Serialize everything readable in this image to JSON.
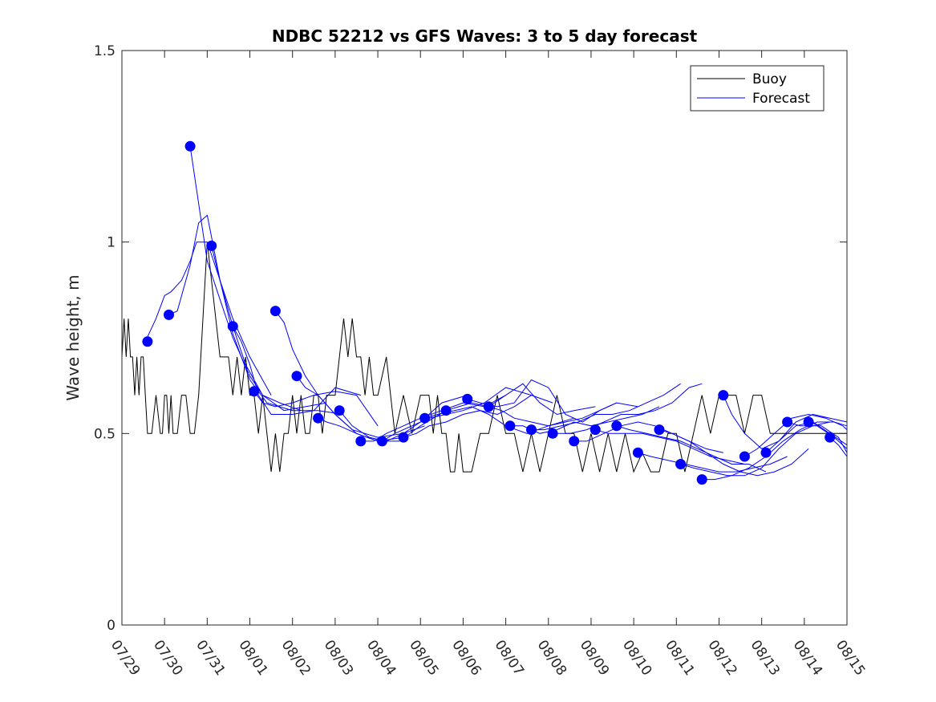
{
  "chart_data": {
    "type": "line",
    "title": "NDBC 52212 vs GFS Waves: 3 to 5 day forecast",
    "xlabel": "",
    "ylabel": "Wave height, m",
    "xlim": [
      0,
      17
    ],
    "ylim": [
      0,
      1.5
    ],
    "x_tick_labels": [
      "07/29",
      "07/30",
      "07/31",
      "08/01",
      "08/02",
      "08/03",
      "08/04",
      "08/05",
      "08/06",
      "08/07",
      "08/08",
      "08/09",
      "08/10",
      "08/11",
      "08/12",
      "08/13",
      "08/14",
      "08/15"
    ],
    "y_ticks": [
      0,
      0.5,
      1,
      1.5
    ],
    "y_tick_labels": [
      "0",
      "0.5",
      "1",
      "1.5"
    ],
    "legend": {
      "location": "top-right",
      "entries": [
        "Buoy",
        "Forecast"
      ]
    },
    "colors": {
      "buoy": "#000000",
      "forecast": "#0000ff",
      "axes": "#262626"
    },
    "buoy": {
      "name": "Buoy",
      "x": [
        0,
        0.05,
        0.1,
        0.15,
        0.2,
        0.25,
        0.3,
        0.35,
        0.4,
        0.45,
        0.5,
        0.55,
        0.6,
        0.7,
        0.8,
        0.9,
        0.95,
        1.0,
        1.05,
        1.1,
        1.15,
        1.2,
        1.3,
        1.4,
        1.5,
        1.6,
        1.7,
        1.8,
        1.9,
        2.0,
        2.1,
        2.2,
        2.3,
        2.4,
        2.5,
        2.6,
        2.7,
        2.8,
        2.9,
        3.0,
        3.1,
        3.2,
        3.3,
        3.4,
        3.5,
        3.6,
        3.7,
        3.8,
        3.9,
        4.0,
        4.1,
        4.2,
        4.3,
        4.4,
        4.5,
        4.6,
        4.7,
        4.8,
        4.9,
        5.0,
        5.1,
        5.2,
        5.3,
        5.4,
        5.5,
        5.6,
        5.7,
        5.8,
        5.9,
        6.0,
        6.2,
        6.4,
        6.6,
        6.8,
        7.0,
        7.2,
        7.3,
        7.4,
        7.5,
        7.6,
        7.7,
        7.8,
        7.9,
        8.0,
        8.2,
        8.4,
        8.6,
        8.8,
        9.0,
        9.2,
        9.4,
        9.6,
        9.8,
        10.0,
        10.2,
        10.4,
        10.6,
        10.8,
        11.0,
        11.2,
        11.4,
        11.6,
        11.8,
        12.0,
        12.2,
        12.4,
        12.6,
        12.8,
        13.0,
        13.2,
        13.4,
        13.6,
        13.8,
        14.0,
        14.2,
        14.4,
        14.6,
        14.8,
        15.0,
        15.2,
        15.4,
        15.6,
        15.8,
        16.0,
        16.2,
        16.4,
        16.6,
        16.8,
        17.0
      ],
      "y": [
        0.7,
        0.8,
        0.7,
        0.8,
        0.7,
        0.7,
        0.6,
        0.7,
        0.6,
        0.7,
        0.7,
        0.6,
        0.5,
        0.5,
        0.6,
        0.5,
        0.5,
        0.6,
        0.6,
        0.5,
        0.6,
        0.5,
        0.5,
        0.6,
        0.6,
        0.5,
        0.5,
        0.6,
        0.8,
        1.0,
        0.9,
        0.8,
        0.7,
        0.7,
        0.7,
        0.6,
        0.7,
        0.6,
        0.7,
        0.6,
        0.6,
        0.5,
        0.6,
        0.5,
        0.4,
        0.5,
        0.4,
        0.5,
        0.5,
        0.6,
        0.5,
        0.6,
        0.5,
        0.5,
        0.6,
        0.6,
        0.5,
        0.6,
        0.6,
        0.6,
        0.7,
        0.8,
        0.7,
        0.8,
        0.7,
        0.7,
        0.6,
        0.7,
        0.6,
        0.6,
        0.7,
        0.5,
        0.6,
        0.5,
        0.6,
        0.6,
        0.5,
        0.6,
        0.5,
        0.5,
        0.4,
        0.4,
        0.5,
        0.4,
        0.4,
        0.5,
        0.5,
        0.6,
        0.5,
        0.5,
        0.4,
        0.5,
        0.4,
        0.5,
        0.6,
        0.5,
        0.5,
        0.4,
        0.5,
        0.4,
        0.5,
        0.4,
        0.5,
        0.4,
        0.45,
        0.4,
        0.4,
        0.5,
        0.5,
        0.4,
        0.5,
        0.6,
        0.5,
        0.6,
        0.6,
        0.6,
        0.5,
        0.6,
        0.6,
        0.5,
        0.5,
        0.5,
        0.5,
        0.5,
        0.5,
        0.5,
        0.5,
        0.5,
        0.5
      ],
      "description": "approximate hourly buoy wave height trace"
    },
    "forecast_lines": [
      {
        "x": [
          0.55,
          0.8,
          1.0,
          1.15,
          1.4,
          1.6,
          1.75,
          2.0,
          2.3,
          2.6,
          3.0,
          3.5
        ],
        "y": [
          0.74,
          0.8,
          0.86,
          0.87,
          0.9,
          0.95,
          1.0,
          1.0,
          0.9,
          0.8,
          0.7,
          0.6
        ]
      },
      {
        "x": [
          1.1,
          1.3,
          1.6,
          1.8,
          2.0,
          2.3,
          2.6,
          2.9,
          3.3,
          3.7,
          4.2
        ],
        "y": [
          0.81,
          0.82,
          0.94,
          1.05,
          1.07,
          0.9,
          0.78,
          0.68,
          0.6,
          0.58,
          0.56
        ]
      },
      {
        "x": [
          1.6,
          1.8,
          2.0,
          2.3,
          2.6,
          3.0,
          3.3,
          3.8,
          4.3,
          4.8
        ],
        "y": [
          1.25,
          1.1,
          0.95,
          0.85,
          0.75,
          0.65,
          0.6,
          0.56,
          0.57,
          0.58
        ]
      },
      {
        "x": [
          2.1,
          2.3,
          2.6,
          3.0,
          3.4,
          4.0,
          4.6,
          5.2
        ],
        "y": [
          0.99,
          0.9,
          0.76,
          0.64,
          0.58,
          0.56,
          0.56,
          0.55
        ]
      },
      {
        "x": [
          2.6,
          2.8,
          3.0,
          3.2,
          3.5,
          4.0,
          4.5,
          5.0,
          5.6
        ],
        "y": [
          0.78,
          0.74,
          0.68,
          0.6,
          0.55,
          0.55,
          0.56,
          0.62,
          0.6
        ]
      },
      {
        "x": [
          3.1,
          3.3,
          3.6,
          4.0,
          4.5,
          5.0,
          5.5,
          6.0
        ],
        "y": [
          0.61,
          0.58,
          0.57,
          0.58,
          0.6,
          0.61,
          0.6,
          0.52
        ]
      },
      {
        "x": [
          3.6,
          3.8,
          4.0,
          4.3,
          4.6,
          5.0,
          5.5,
          6.0,
          6.6
        ],
        "y": [
          0.82,
          0.79,
          0.72,
          0.65,
          0.6,
          0.55,
          0.5,
          0.48,
          0.49
        ]
      },
      {
        "x": [
          4.1,
          4.3,
          4.6,
          5.0,
          5.4,
          6.0,
          6.6,
          7.1
        ],
        "y": [
          0.65,
          0.62,
          0.6,
          0.55,
          0.51,
          0.49,
          0.5,
          0.52
        ]
      },
      {
        "x": [
          4.6,
          4.8,
          5.1,
          5.5,
          6.0,
          6.5,
          7.0,
          7.6
        ],
        "y": [
          0.54,
          0.53,
          0.52,
          0.5,
          0.48,
          0.48,
          0.52,
          0.56
        ]
      },
      {
        "x": [
          5.1,
          5.4,
          5.8,
          6.2,
          6.6,
          7.0,
          7.5,
          8.1
        ],
        "y": [
          0.56,
          0.52,
          0.49,
          0.48,
          0.5,
          0.53,
          0.58,
          0.6
        ]
      },
      {
        "x": [
          5.6,
          5.9,
          6.2,
          6.6,
          7.0,
          7.5,
          8.0,
          8.5,
          9.0
        ],
        "y": [
          0.48,
          0.48,
          0.5,
          0.52,
          0.54,
          0.56,
          0.58,
          0.57,
          0.6
        ]
      },
      {
        "x": [
          6.1,
          6.4,
          6.8,
          7.2,
          7.6,
          8.0,
          8.5,
          9.0,
          9.6
        ],
        "y": [
          0.48,
          0.5,
          0.52,
          0.54,
          0.55,
          0.56,
          0.58,
          0.62,
          0.6
        ]
      },
      {
        "x": [
          6.6,
          6.9,
          7.2,
          7.6,
          8.0,
          8.4,
          8.8,
          9.2,
          9.6,
          10.1
        ],
        "y": [
          0.49,
          0.5,
          0.52,
          0.53,
          0.55,
          0.56,
          0.55,
          0.57,
          0.6,
          0.58
        ]
      },
      {
        "x": [
          7.1,
          7.4,
          7.8,
          8.2,
          8.6,
          9.0,
          9.5,
          10.0,
          10.6
        ],
        "y": [
          0.54,
          0.55,
          0.56,
          0.57,
          0.55,
          0.52,
          0.5,
          0.52,
          0.54
        ]
      },
      {
        "x": [
          7.6,
          7.9,
          8.2,
          8.6,
          9.0,
          9.4,
          9.8,
          10.2,
          10.6,
          11.1
        ],
        "y": [
          0.56,
          0.57,
          0.58,
          0.57,
          0.6,
          0.63,
          0.58,
          0.55,
          0.56,
          0.57
        ]
      },
      {
        "x": [
          8.1,
          8.4,
          8.8,
          9.2,
          9.6,
          10.0,
          10.4,
          10.8,
          11.2,
          11.6
        ],
        "y": [
          0.59,
          0.58,
          0.57,
          0.58,
          0.64,
          0.62,
          0.55,
          0.53,
          0.56,
          0.58
        ]
      },
      {
        "x": [
          8.6,
          8.9,
          9.2,
          9.6,
          10.0,
          10.4,
          10.8,
          11.2,
          11.6,
          12.1
        ],
        "y": [
          0.57,
          0.56,
          0.54,
          0.53,
          0.52,
          0.53,
          0.54,
          0.56,
          0.58,
          0.57
        ]
      },
      {
        "x": [
          9.1,
          9.4,
          9.8,
          10.2,
          10.6,
          11.0,
          11.4,
          11.8,
          12.2,
          12.6
        ],
        "y": [
          0.52,
          0.52,
          0.5,
          0.51,
          0.53,
          0.52,
          0.53,
          0.54,
          0.55,
          0.57
        ]
      },
      {
        "x": [
          9.6,
          9.9,
          10.3,
          10.7,
          11.1,
          11.5,
          11.9,
          12.3,
          12.7,
          13.1
        ],
        "y": [
          0.51,
          0.51,
          0.52,
          0.53,
          0.55,
          0.55,
          0.56,
          0.58,
          0.6,
          0.63
        ]
      },
      {
        "x": [
          10.1,
          10.5,
          10.9,
          11.3,
          11.7,
          12.1,
          12.5,
          12.9,
          13.3,
          13.6
        ],
        "y": [
          0.5,
          0.5,
          0.51,
          0.53,
          0.55,
          0.55,
          0.56,
          0.58,
          0.62,
          0.63
        ]
      },
      {
        "x": [
          10.6,
          10.9,
          11.3,
          11.7,
          12.1,
          12.5,
          12.9,
          13.3,
          13.7,
          14.1
        ],
        "y": [
          0.48,
          0.48,
          0.5,
          0.52,
          0.53,
          0.52,
          0.5,
          0.48,
          0.46,
          0.45
        ]
      },
      {
        "x": [
          11.1,
          11.4,
          11.8,
          12.2,
          12.6,
          13.0,
          13.4,
          13.8,
          14.2,
          14.6
        ],
        "y": [
          0.51,
          0.5,
          0.5,
          0.5,
          0.49,
          0.48,
          0.46,
          0.44,
          0.43,
          0.42
        ]
      },
      {
        "x": [
          11.6,
          11.9,
          12.3,
          12.7,
          13.1,
          13.5,
          13.9,
          14.3,
          14.7,
          15.1
        ],
        "y": [
          0.52,
          0.51,
          0.5,
          0.49,
          0.48,
          0.46,
          0.44,
          0.42,
          0.42,
          0.4
        ]
      },
      {
        "x": [
          12.1,
          12.4,
          12.8,
          13.2,
          13.6,
          14.0,
          14.4,
          14.8,
          15.2,
          15.6
        ],
        "y": [
          0.45,
          0.44,
          0.43,
          0.42,
          0.41,
          0.4,
          0.4,
          0.41,
          0.42,
          0.44
        ]
      },
      {
        "x": [
          12.6,
          12.9,
          13.3,
          13.7,
          14.1,
          14.5,
          14.9,
          15.3,
          15.7,
          16.1
        ],
        "y": [
          0.51,
          0.5,
          0.48,
          0.45,
          0.42,
          0.4,
          0.39,
          0.4,
          0.42,
          0.46
        ]
      },
      {
        "x": [
          13.1,
          13.4,
          13.8,
          14.2,
          14.6,
          15.0,
          15.4,
          15.8,
          16.2,
          16.6
        ],
        "y": [
          0.42,
          0.41,
          0.4,
          0.39,
          0.39,
          0.41,
          0.46,
          0.5,
          0.52,
          0.53
        ]
      },
      {
        "x": [
          13.6,
          13.9,
          14.3,
          14.7,
          15.1,
          15.5,
          15.9,
          16.3,
          16.7,
          17.0
        ],
        "y": [
          0.38,
          0.38,
          0.39,
          0.41,
          0.44,
          0.48,
          0.51,
          0.53,
          0.53,
          0.52
        ]
      },
      {
        "x": [
          14.1,
          14.3,
          14.6,
          15.0,
          15.4,
          15.8,
          16.2,
          16.6,
          17.0
        ],
        "y": [
          0.6,
          0.55,
          0.5,
          0.46,
          0.48,
          0.53,
          0.55,
          0.54,
          0.53
        ]
      },
      {
        "x": [
          14.6,
          14.9,
          15.3,
          15.7,
          16.1,
          16.5,
          16.9,
          17.0
        ],
        "y": [
          0.44,
          0.46,
          0.5,
          0.54,
          0.55,
          0.54,
          0.52,
          0.51
        ]
      },
      {
        "x": [
          15.1,
          15.4,
          15.8,
          16.2,
          16.6,
          17.0
        ],
        "y": [
          0.45,
          0.48,
          0.52,
          0.53,
          0.5,
          0.47
        ]
      },
      {
        "x": [
          15.6,
          15.9,
          16.3,
          16.7,
          17.0
        ],
        "y": [
          0.53,
          0.52,
          0.52,
          0.49,
          0.46
        ]
      },
      {
        "x": [
          16.1,
          16.4,
          16.8,
          17.0
        ],
        "y": [
          0.53,
          0.52,
          0.49,
          0.45
        ]
      },
      {
        "x": [
          16.6,
          16.8,
          17.0
        ],
        "y": [
          0.49,
          0.47,
          0.44
        ]
      }
    ],
    "forecast_points": {
      "name": "Forecast",
      "x": [
        0.6,
        1.1,
        1.6,
        2.1,
        2.6,
        3.1,
        3.6,
        4.1,
        4.6,
        5.1,
        5.6,
        6.1,
        6.6,
        7.1,
        7.6,
        8.1,
        8.6,
        9.1,
        9.6,
        10.1,
        10.6,
        11.1,
        11.6,
        12.1,
        12.6,
        13.1,
        13.6,
        14.1,
        14.6,
        15.1,
        15.6,
        16.1,
        16.6
      ],
      "y": [
        0.74,
        0.81,
        1.25,
        0.99,
        0.78,
        0.61,
        0.82,
        0.65,
        0.54,
        0.56,
        0.48,
        0.48,
        0.49,
        0.54,
        0.56,
        0.59,
        0.57,
        0.52,
        0.51,
        0.5,
        0.48,
        0.51,
        0.52,
        0.45,
        0.51,
        0.42,
        0.38,
        0.6,
        0.44,
        0.45,
        0.53,
        0.53,
        0.49
      ]
    }
  }
}
